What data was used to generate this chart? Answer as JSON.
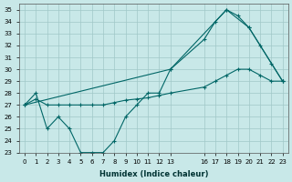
{
  "xlabel": "Humidex (Indice chaleur)",
  "bg_color": "#c8e8e8",
  "grid_color": "#a0c8c8",
  "line_color": "#006666",
  "xlim": [
    -0.5,
    23.5
  ],
  "ylim": [
    23,
    35.5
  ],
  "yticks": [
    23,
    24,
    25,
    26,
    27,
    28,
    29,
    30,
    31,
    32,
    33,
    34,
    35
  ],
  "xtick_positions": [
    0,
    1,
    2,
    3,
    4,
    5,
    6,
    7,
    8,
    9,
    10,
    11,
    12,
    13,
    16,
    17,
    18,
    19,
    20,
    21,
    22,
    23
  ],
  "xtick_labels": [
    "0",
    "1",
    "2",
    "3",
    "4",
    "5",
    "6",
    "7",
    "8",
    "9",
    "10",
    "11",
    "12",
    "13",
    "16",
    "17",
    "18",
    "19",
    "20",
    "21",
    "22",
    "23"
  ],
  "line1_x": [
    0,
    1,
    2,
    3,
    4,
    5,
    6,
    7,
    8,
    9,
    10,
    11,
    12,
    13,
    16,
    17,
    18,
    19,
    20,
    21,
    22,
    23
  ],
  "line1_y": [
    27,
    28,
    25,
    26,
    25,
    23,
    23,
    23,
    24,
    26,
    27,
    28,
    28,
    30,
    32.5,
    34,
    35,
    34.5,
    33.5,
    32,
    30.5,
    29
  ],
  "line2_x": [
    0,
    1,
    2,
    3,
    4,
    5,
    6,
    7,
    8,
    9,
    10,
    11,
    12,
    13,
    16,
    17,
    18,
    19,
    20,
    21,
    22,
    23
  ],
  "line2_y": [
    27,
    27.5,
    27,
    27,
    27,
    27,
    27,
    27,
    27.2,
    27.4,
    27.5,
    27.6,
    27.8,
    28,
    28.5,
    29,
    29.5,
    30,
    30,
    29.5,
    29,
    29
  ],
  "line3_x": [
    0,
    13,
    18,
    20,
    23
  ],
  "line3_y": [
    27,
    30,
    35,
    33.5,
    29
  ]
}
